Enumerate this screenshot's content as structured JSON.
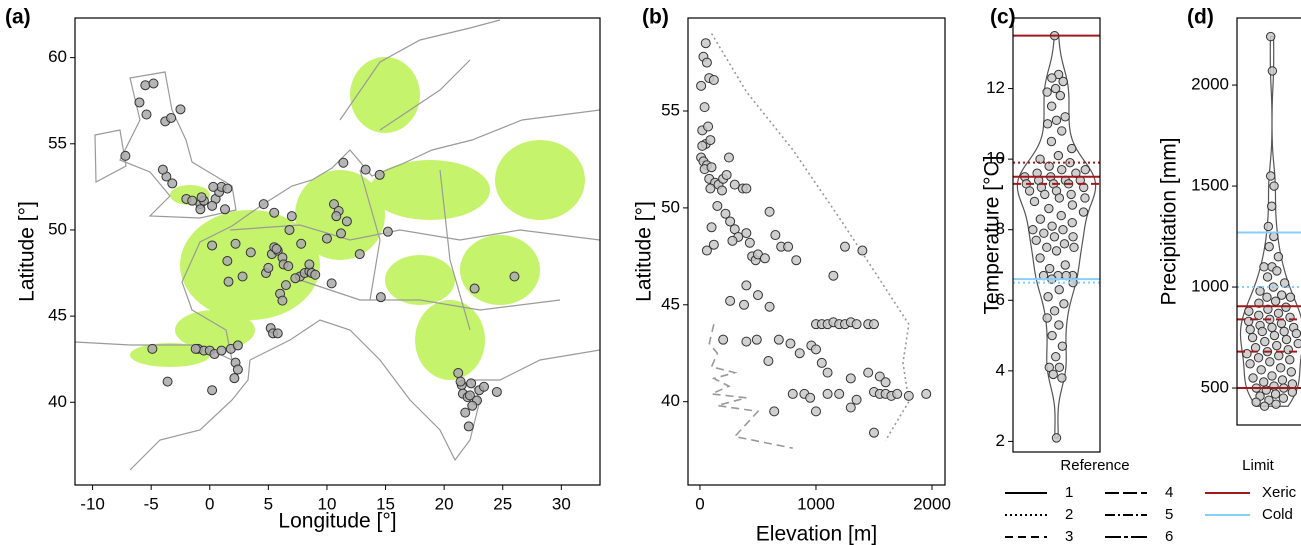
{
  "chart_data": [
    {
      "type": "scatter",
      "panel_label": "(a)",
      "x_label": "Longitude [°]",
      "y_label": "Latitude [°]",
      "color": "#a9a9a9",
      "xlim": [
        -11.5,
        33.3
      ],
      "ylim": [
        35.2,
        62.3
      ],
      "xticks": [
        -10,
        -5,
        0,
        5,
        10,
        15,
        20,
        25,
        30
      ],
      "yticks": [
        40,
        45,
        50,
        55,
        60
      ],
      "x": [
        -5.5,
        -4.8,
        -6,
        -5.4,
        -3.8,
        -3.3,
        -2.5,
        -7.2,
        -3.7,
        -4,
        -3.2,
        -2,
        -1.5,
        -0.8,
        -0.5,
        -0.7,
        0.5,
        0.8,
        1,
        1.5,
        0.2,
        1.3,
        -0.8,
        0.3,
        0.2,
        2.2,
        3.5,
        1.5,
        2.8,
        1.6,
        4.8,
        5,
        5.3,
        5.8,
        6.2,
        6.3,
        6.7,
        4.6,
        5.5,
        7,
        5.5,
        5.7,
        7.7,
        8.1,
        8.5,
        8.7,
        9,
        7.3,
        6.5,
        6,
        6.2,
        8.5,
        6.8,
        7.8,
        10.6,
        11,
        11.7,
        11.2,
        10.8,
        11.4,
        13.3,
        14.5,
        12.8,
        10,
        15.2,
        10.4,
        14.6,
        5.2,
        5.4,
        5.8,
        -1,
        -0.5,
        0,
        0.4,
        1,
        1.8,
        2.4,
        2.2,
        2.4,
        2.1,
        0.2,
        -4.9,
        -3.6,
        -1.2,
        26,
        22.6,
        21.2,
        21.5,
        21.6,
        22,
        22.2,
        23,
        23.4,
        24.5,
        22.8,
        22.4,
        21.8,
        22.1,
        21.4,
        22.3
      ],
      "y": [
        58.4,
        58.5,
        57.4,
        56.7,
        56.3,
        56.5,
        57,
        54.3,
        53.1,
        53.5,
        52.7,
        51.8,
        51.7,
        51.5,
        51.7,
        51.9,
        51.8,
        52.2,
        52.5,
        52.4,
        51.4,
        51.2,
        51.2,
        52.5,
        49.1,
        49.2,
        48.7,
        48.2,
        47.3,
        47,
        47.5,
        47.8,
        48.6,
        48.8,
        48.4,
        48,
        47.9,
        51.5,
        51,
        50.8,
        49,
        48.9,
        47.3,
        47.5,
        47.6,
        47.5,
        47.4,
        47.2,
        46.8,
        46.3,
        45.9,
        48,
        50,
        49.2,
        51.5,
        51.1,
        50.5,
        49.8,
        50.8,
        53.9,
        53.5,
        53.2,
        48.6,
        49.5,
        49.9,
        46.9,
        46.1,
        44.3,
        44,
        44,
        43.1,
        43,
        43,
        42.8,
        43,
        43.1,
        43.3,
        42.3,
        41.9,
        41.4,
        40.7,
        43.1,
        41.2,
        43.1,
        47.3,
        46.6,
        41.7,
        41,
        40.5,
        40.3,
        40.4,
        40.7,
        40.9,
        40.6,
        40.1,
        39.8,
        39.4,
        38.6,
        41.2,
        41.1
      ]
    },
    {
      "type": "scatter",
      "panel_label": "(b)",
      "x_label": "Elevation [m]",
      "y_label": "Latitude [°]",
      "color": "#c8c8c8",
      "xlim": [
        -103,
        2112
      ],
      "ylim": [
        35.7,
        59.8
      ],
      "xticks": [
        0,
        1000,
        2000
      ],
      "yticks": [
        40,
        45,
        50,
        55
      ],
      "x": [
        50,
        30,
        60,
        80,
        10,
        120,
        40,
        20,
        70,
        50,
        90,
        20,
        10,
        30,
        60,
        40,
        100,
        80,
        130,
        160,
        90,
        200,
        190,
        230,
        300,
        370,
        400,
        250,
        150,
        220,
        260,
        300,
        330,
        280,
        120,
        60,
        100,
        400,
        430,
        450,
        480,
        500,
        560,
        600,
        650,
        700,
        760,
        830,
        400,
        500,
        600,
        380,
        260,
        400,
        490,
        590,
        680,
        780,
        860,
        960,
        1000,
        1050,
        1100,
        1150,
        1200,
        1250,
        1300,
        1350,
        1450,
        1500,
        1250,
        1400,
        1150,
        1000,
        1050,
        1100,
        1300,
        1450,
        1550,
        1600,
        1500,
        1550,
        1600,
        1650,
        1700,
        1800,
        1950,
        1200,
        1100,
        900,
        800,
        1000,
        950,
        1300,
        1500,
        1350,
        640,
        200
      ],
      "y": [
        58.5,
        57.8,
        57.5,
        56.7,
        56.3,
        56.6,
        55.2,
        54,
        54.2,
        53.3,
        53.5,
        53.2,
        52.6,
        52.4,
        52.2,
        52,
        52.1,
        51.5,
        51.3,
        51.2,
        51,
        51.5,
        50.9,
        51.7,
        51.2,
        51,
        51,
        52.6,
        50.1,
        49.7,
        49.3,
        48.9,
        48.5,
        48.3,
        48.1,
        47.8,
        49,
        48.7,
        48.2,
        47.5,
        47.3,
        47.6,
        47.4,
        49.8,
        48.6,
        48,
        48,
        47.3,
        46,
        45.5,
        44.9,
        45,
        45.2,
        43.1,
        43.2,
        42.1,
        43.2,
        43,
        42.5,
        42.9,
        44,
        44,
        44,
        44.1,
        44,
        44,
        44.1,
        44,
        44,
        44,
        48,
        47.8,
        46.5,
        42.7,
        42,
        41.5,
        41.2,
        41.5,
        41.3,
        41,
        40.5,
        40.4,
        40.4,
        40.3,
        40.4,
        40.3,
        40.4,
        40.4,
        40.4,
        40.4,
        40.4,
        39.5,
        40.2,
        39.7,
        38.4,
        40.1,
        39.5,
        43.2
      ],
      "lines": [
        {
          "reference": 1,
          "color": "#999999",
          "x": [
            100,
            400,
            800,
            1200,
            1550,
            1800,
            1750,
            1800,
            1600
          ],
          "y": [
            59,
            56,
            53,
            49.5,
            46.3,
            44,
            42,
            40,
            38
          ]
        },
        {
          "reference": 2,
          "color": "#999999",
          "x": [
            120,
            80,
            150,
            100,
            300,
            120,
            250,
            100,
            400,
            150,
            500,
            300,
            800
          ],
          "y": [
            44,
            43,
            42.5,
            41.8,
            41.5,
            41.2,
            40.8,
            40.4,
            40.2,
            39.8,
            39.5,
            38.2,
            37.6
          ]
        }
      ]
    },
    {
      "type": "violin",
      "panel_label": "(c)",
      "y_label": "Temperature [°C]",
      "color": "#c8c8c8",
      "ylim": [
        1.7,
        14
      ],
      "yticks": [
        2,
        4,
        6,
        8,
        10,
        12
      ],
      "values": [
        13.5,
        12.4,
        12.3,
        12.2,
        12.0,
        11.9,
        11.8,
        11.5,
        11.2,
        11.1,
        11.0,
        10.8,
        10.5,
        10.3,
        10.1,
        10.0,
        9.9,
        9.8,
        9.7,
        9.7,
        9.6,
        9.6,
        9.5,
        9.5,
        9.4,
        9.4,
        9.4,
        9.3,
        9.3,
        9.3,
        9.2,
        9.2,
        9.1,
        9.1,
        9.0,
        9.0,
        8.9,
        8.9,
        8.8,
        8.7,
        8.6,
        8.5,
        8.4,
        8.3,
        8.2,
        8.1,
        8.0,
        8.0,
        7.9,
        7.8,
        7.8,
        7.7,
        7.6,
        7.5,
        7.5,
        7.4,
        7.2,
        7.0,
        6.9,
        6.7,
        6.7,
        6.7,
        6.7,
        6.6,
        6.5,
        6.3,
        6.1,
        5.9,
        5.7,
        5.5,
        5.3,
        5.0,
        4.7,
        4.4,
        4.1,
        4.1,
        3.9,
        3.8,
        2.1
      ],
      "hlines": [
        {
          "value": 13.5,
          "limit": 0,
          "reference": 0
        },
        {
          "value": 9.9,
          "limit": 0,
          "reference": 1
        },
        {
          "value": 9.5,
          "limit": 0,
          "reference": 0
        },
        {
          "value": 9.3,
          "limit": 0,
          "reference": 2
        },
        {
          "value": 6.6,
          "limit": 1,
          "reference": 0
        },
        {
          "value": 6.5,
          "limit": 1,
          "reference": 1
        }
      ]
    },
    {
      "type": "violin",
      "panel_label": "(d)",
      "y_label": "Precipitation [mm]",
      "color": "#c8c8c8",
      "ylim": [
        317,
        2332
      ],
      "yticks": [
        500,
        1000,
        1500,
        2000
      ],
      "values": [
        2240,
        2070,
        1550,
        1500,
        1400,
        1300,
        1250,
        1200,
        1150,
        1100,
        1100,
        1080,
        1050,
        1020,
        1000,
        980,
        960,
        950,
        950,
        930,
        920,
        900,
        890,
        880,
        870,
        860,
        850,
        840,
        830,
        820,
        810,
        800,
        800,
        790,
        780,
        780,
        770,
        760,
        750,
        740,
        730,
        720,
        710,
        700,
        690,
        680,
        670,
        660,
        650,
        640,
        630,
        620,
        600,
        590,
        580,
        560,
        550,
        540,
        530,
        520,
        510,
        500,
        500,
        490,
        480,
        470,
        460,
        450,
        440,
        430,
        420,
        410
      ],
      "hlines": [
        {
          "value": 1270,
          "limit": 1,
          "reference": 0
        },
        {
          "value": 1000,
          "limit": 1,
          "reference": 1
        },
        {
          "value": 905,
          "limit": 0,
          "reference": 0
        },
        {
          "value": 840,
          "limit": 0,
          "reference": 2
        },
        {
          "value": 680,
          "limit": 0,
          "reference": 2
        },
        {
          "value": 500,
          "limit": 0,
          "reference": 0
        }
      ]
    }
  ],
  "legend": {
    "reference": {
      "title": "Reference",
      "color": "#000000",
      "items": [
        "1",
        "2",
        "3",
        "4",
        "5",
        "6"
      ]
    },
    "limit": {
      "title": "Limit",
      "items": [
        {
          "name": "Xeric",
          "color": "#a0191e"
        },
        {
          "name": "Cold",
          "color": "#87cefa"
        }
      ]
    }
  }
}
